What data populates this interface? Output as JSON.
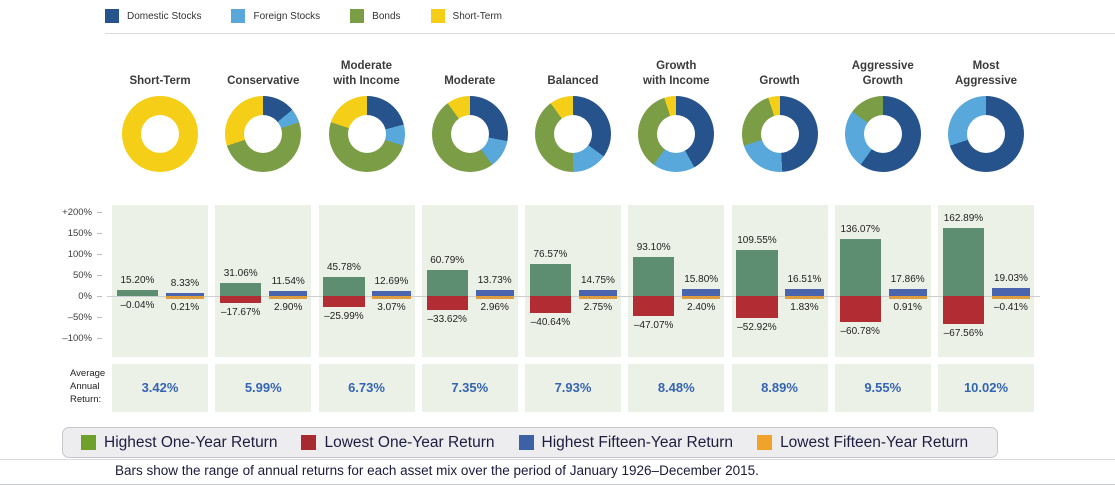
{
  "top_legend": [
    {
      "label": "Domestic Stocks",
      "color": "#26538C"
    },
    {
      "label": "Foreign Stocks",
      "color": "#58A8DC"
    },
    {
      "label": "Bonds",
      "color": "#7B9D45"
    },
    {
      "label": "Short-Term",
      "color": "#F5CE17"
    }
  ],
  "avg_label": "Average\nAnnual\nReturn:",
  "avg_value_color": "#3464B4",
  "footnote": "Bars show the range of annual returns for each asset mix over the period of January 1926–December 2015.",
  "bottom_legend": [
    {
      "label": "Highest One-Year Return",
      "color": "#6FA02C"
    },
    {
      "label": "Lowest One-Year Return",
      "color": "#A62A30"
    },
    {
      "label": "Highest Fifteen-Year Return",
      "color": "#3D61A6"
    },
    {
      "label": "Lowest Fifteen-Year Return",
      "color": "#F0A32A"
    }
  ],
  "chart_data": {
    "type": "bar",
    "title": "Range of annual returns for nine asset mixes, January 1926–December 2015",
    "categories": [
      "Short-Term",
      "Conservative",
      "Moderate with Income",
      "Moderate",
      "Balanced",
      "Growth with Income",
      "Growth",
      "Aggressive Growth",
      "Most Aggressive"
    ],
    "category_title_lines": [
      [
        "Short-Term"
      ],
      [
        "Conservative"
      ],
      [
        "Moderate",
        "with Income"
      ],
      [
        "Moderate"
      ],
      [
        "Balanced"
      ],
      [
        "Growth",
        "with Income"
      ],
      [
        "Growth"
      ],
      [
        "Aggressive",
        "Growth"
      ],
      [
        "Most",
        "Aggressive"
      ]
    ],
    "series": [
      {
        "name": "Highest One-Year Return",
        "color": "#5E8E72",
        "values": [
          15.2,
          31.06,
          45.78,
          60.79,
          76.57,
          93.1,
          109.55,
          136.07,
          162.89
        ]
      },
      {
        "name": "Lowest One-Year Return",
        "color": "#B22C34",
        "values": [
          -0.04,
          -17.67,
          -25.99,
          -33.62,
          -40.64,
          -47.07,
          -52.92,
          -60.78,
          -67.56
        ]
      },
      {
        "name": "Highest Fifteen-Year Return",
        "color": "#4A65AE",
        "values": [
          8.33,
          11.54,
          12.69,
          13.73,
          14.75,
          15.8,
          16.51,
          17.86,
          19.03
        ]
      },
      {
        "name": "Lowest Fifteen-Year Return",
        "color": "#DF9E3D",
        "values": [
          0.21,
          2.9,
          3.07,
          2.96,
          2.75,
          2.4,
          1.83,
          0.91,
          -0.41
        ]
      }
    ],
    "average_annual_return": [
      "3.42%",
      "5.99%",
      "6.73%",
      "7.35%",
      "7.93%",
      "8.48%",
      "8.89%",
      "9.55%",
      "10.02%"
    ],
    "allocations": {
      "order": [
        "Domestic Stocks",
        "Foreign Stocks",
        "Bonds",
        "Short-Term"
      ],
      "values": [
        [
          0,
          0,
          0,
          100
        ],
        [
          14,
          6,
          50,
          30
        ],
        [
          21,
          9,
          50,
          20
        ],
        [
          28,
          12,
          50,
          10
        ],
        [
          35,
          15,
          40,
          10
        ],
        [
          42,
          18,
          35,
          5
        ],
        [
          49,
          21,
          25,
          5
        ],
        [
          60,
          25,
          15,
          0
        ],
        [
          70,
          30,
          0,
          0
        ]
      ]
    },
    "y_axis": {
      "ticks": [
        "+200%",
        "150%",
        "100%",
        "50%",
        "0%",
        "–50%",
        "–100%"
      ],
      "tick_values": [
        200,
        150,
        100,
        50,
        0,
        -50,
        -100
      ],
      "ylim": [
        -130,
        230
      ],
      "grid": false
    },
    "legend_position": "bottom"
  }
}
